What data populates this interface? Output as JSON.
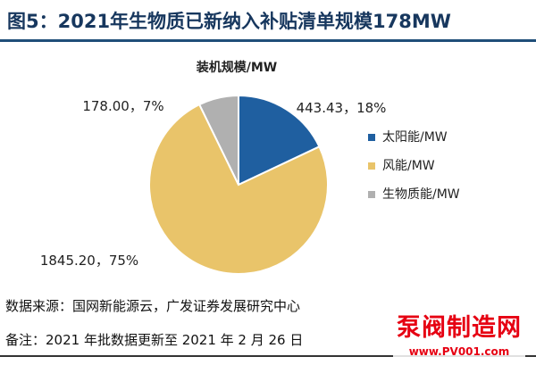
{
  "figure": {
    "title": "图5：2021年生物质已新纳入补贴清单规模178MW",
    "source": "数据来源：国网新能源云，广发证券发展研究中心",
    "note": "备注：2021 年批数据更新至 2021 年 2 月 26 日"
  },
  "watermark": {
    "main": "泵阀制造网",
    "url": "www.PV001.com"
  },
  "colors": {
    "title": "#17375e",
    "solar": "#1f5fa0",
    "wind": "#e9c46a",
    "biomass": "#b0b0b0"
  },
  "chart_data": {
    "type": "pie",
    "title": "装机规模/MW",
    "legend_position": "right",
    "slices": [
      {
        "name": "太阳能/MW",
        "value": 443.43,
        "percent": 18,
        "label": "443.43，18%",
        "color": "#1f5fa0"
      },
      {
        "name": "风能/MW",
        "value": 1845.2,
        "percent": 75,
        "label": "1845.20，75%",
        "color": "#e9c46a"
      },
      {
        "name": "生物质能/MW",
        "value": 178.0,
        "percent": 7,
        "label": "178.00，7%",
        "color": "#b0b0b0"
      }
    ]
  }
}
